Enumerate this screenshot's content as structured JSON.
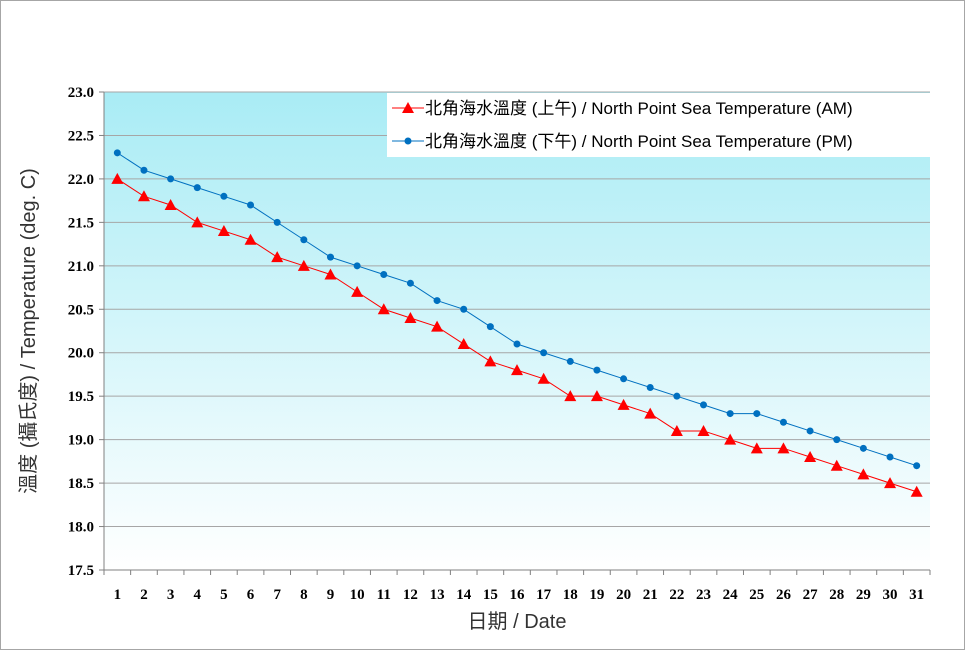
{
  "chart_data": {
    "type": "line",
    "xlabel": "日期 / Date",
    "ylabel": "溫度 (攝氏度) / Temperature (deg. C)",
    "ylim": [
      17.5,
      23.0
    ],
    "y_ticks": [
      "17.5",
      "18.0",
      "18.5",
      "19.0",
      "19.5",
      "20.0",
      "20.5",
      "21.0",
      "21.5",
      "22.0",
      "22.5",
      "23.0"
    ],
    "x": [
      1,
      2,
      3,
      4,
      5,
      6,
      7,
      8,
      9,
      10,
      11,
      12,
      13,
      14,
      15,
      16,
      17,
      18,
      19,
      20,
      21,
      22,
      23,
      24,
      25,
      26,
      27,
      28,
      29,
      30,
      31
    ],
    "grid": true,
    "legend_position": "top-right",
    "series": [
      {
        "name": "北角海水溫度 (上午) / North Point Sea Temperature (AM)",
        "color": "#ff0000",
        "marker": "triangle",
        "values": [
          22.0,
          21.8,
          21.7,
          21.5,
          21.4,
          21.3,
          21.1,
          21.0,
          20.9,
          20.7,
          20.5,
          20.4,
          20.3,
          20.1,
          19.9,
          19.8,
          19.7,
          19.5,
          19.5,
          19.4,
          19.3,
          19.1,
          19.1,
          19.0,
          18.9,
          18.9,
          18.8,
          18.7,
          18.6,
          18.5,
          18.4
        ]
      },
      {
        "name": "北角海水溫度 (下午) / North Point Sea Temperature (PM)",
        "color": "#0070c0",
        "marker": "circle",
        "values": [
          22.3,
          22.1,
          22.0,
          21.9,
          21.8,
          21.7,
          21.5,
          21.3,
          21.1,
          21.0,
          20.9,
          20.8,
          20.6,
          20.5,
          20.3,
          20.1,
          20.0,
          19.9,
          19.8,
          19.7,
          19.6,
          19.5,
          19.4,
          19.3,
          19.3,
          19.2,
          19.1,
          19.0,
          18.9,
          18.8,
          18.7
        ]
      }
    ]
  }
}
